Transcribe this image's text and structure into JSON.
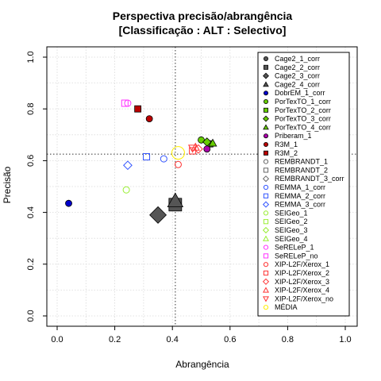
{
  "chart_data": {
    "type": "scatter",
    "title": "Perspectiva precisão/abrangência",
    "subtitle": "[Classificação : ALT : Selectivo]",
    "xlabel": "Abrangência",
    "ylabel": "Precisão",
    "xlim": [
      0,
      1
    ],
    "ylim": [
      0,
      1
    ],
    "xticks": [
      "0.0",
      "0.2",
      "0.4",
      "0.6",
      "0.8",
      "1.0"
    ],
    "yticks": [
      "0.0",
      "0.2",
      "0.4",
      "0.6",
      "0.8",
      "1.0"
    ],
    "grid": true,
    "reference_lines": {
      "x": 0.41,
      "y": 0.625
    },
    "legend_position": "right",
    "series": [
      {
        "name": "Cage2_1_corr",
        "color": "#555555",
        "marker": "circle-filled",
        "x": [],
        "y": []
      },
      {
        "name": "Cage2_2_corr",
        "color": "#555555",
        "marker": "square-filled",
        "x": [
          0.41
        ],
        "y": [
          0.43
        ]
      },
      {
        "name": "Cage2_3_corr",
        "color": "#555555",
        "marker": "diamond-filled",
        "x": [
          0.35
        ],
        "y": [
          0.39
        ]
      },
      {
        "name": "Cage2_4_corr",
        "color": "#555555",
        "marker": "triangle-filled",
        "x": [
          0.41
        ],
        "y": [
          0.445
        ]
      },
      {
        "name": "DobrEM_1_corr",
        "color": "#0000cc",
        "marker": "circle-filled",
        "x": [
          0.04
        ],
        "y": [
          0.435
        ]
      },
      {
        "name": "PorTexTO_1_corr",
        "color": "#66cc00",
        "marker": "circle-filled",
        "x": [
          0.5
        ],
        "y": [
          0.68
        ]
      },
      {
        "name": "PorTexTO_2_corr",
        "color": "#66cc00",
        "marker": "square-filled",
        "x": [
          0.53
        ],
        "y": [
          0.665
        ]
      },
      {
        "name": "PorTexTO_3_corr",
        "color": "#66cc00",
        "marker": "diamond-filled",
        "x": [
          0.52
        ],
        "y": [
          0.672
        ]
      },
      {
        "name": "PorTexTO_4_corr",
        "color": "#66cc00",
        "marker": "triangle-filled",
        "x": [
          0.54
        ],
        "y": [
          0.668
        ]
      },
      {
        "name": "Priberam_1",
        "color": "#aa00aa",
        "marker": "circle-filled",
        "x": [
          0.52
        ],
        "y": [
          0.645
        ]
      },
      {
        "name": "R3M_1",
        "color": "#bb0000",
        "marker": "circle-filled",
        "x": [
          0.32
        ],
        "y": [
          0.762
        ]
      },
      {
        "name": "R3M_2",
        "color": "#bb0000",
        "marker": "square-filled",
        "x": [
          0.28
        ],
        "y": [
          0.8
        ]
      },
      {
        "name": "REMBRANDT_1",
        "color": "#666666",
        "marker": "circle-open",
        "x": [],
        "y": []
      },
      {
        "name": "REMBRANDT_2",
        "color": "#666666",
        "marker": "square-open",
        "x": [],
        "y": []
      },
      {
        "name": "REMBRANDT_3_corr",
        "color": "#666666",
        "marker": "diamond-open",
        "x": [],
        "y": []
      },
      {
        "name": "REMMA_1_corr",
        "color": "#3355ff",
        "marker": "circle-open",
        "x": [
          0.37
        ],
        "y": [
          0.607
        ]
      },
      {
        "name": "REMMA_2_corr",
        "color": "#3355ff",
        "marker": "square-open",
        "x": [
          0.31
        ],
        "y": [
          0.615
        ]
      },
      {
        "name": "REMMA_3_corr",
        "color": "#3355ff",
        "marker": "diamond-open",
        "x": [
          0.245
        ],
        "y": [
          0.582
        ]
      },
      {
        "name": "SEIGeo_1",
        "color": "#99ee33",
        "marker": "circle-open",
        "x": [
          0.24
        ],
        "y": [
          0.487
        ]
      },
      {
        "name": "SEIGeo_2",
        "color": "#99ee33",
        "marker": "square-open",
        "x": [],
        "y": []
      },
      {
        "name": "SEIGeo_3",
        "color": "#99ee33",
        "marker": "diamond-open",
        "x": [],
        "y": []
      },
      {
        "name": "SEIGeo_4",
        "color": "#99ee33",
        "marker": "triangle-open",
        "x": [],
        "y": []
      },
      {
        "name": "SeRELeP_1",
        "color": "#ff33ff",
        "marker": "circle-open",
        "x": [
          0.245
        ],
        "y": [
          0.822
        ]
      },
      {
        "name": "SeRELeP_no",
        "color": "#ff33ff",
        "marker": "square-open",
        "x": [
          0.235
        ],
        "y": [
          0.822
        ]
      },
      {
        "name": "XIP-L2F/Xerox_1",
        "color": "#ff3333",
        "marker": "circle-open",
        "x": [
          0.42
        ],
        "y": [
          0.585
        ]
      },
      {
        "name": "XIP-L2F/Xerox_2",
        "color": "#ff3333",
        "marker": "square-open",
        "x": [
          0.47
        ],
        "y": [
          0.638
        ]
      },
      {
        "name": "XIP-L2F/Xerox_3",
        "color": "#ff3333",
        "marker": "diamond-open",
        "x": [
          0.49
        ],
        "y": [
          0.645
        ]
      },
      {
        "name": "XIP-L2F/Xerox_4",
        "color": "#ff3333",
        "marker": "triangle-open",
        "x": [
          0.48
        ],
        "y": [
          0.652
        ]
      },
      {
        "name": "XIP-L2F/Xerox_no",
        "color": "#ff3333",
        "marker": "triangle-down-open",
        "x": [
          0.47
        ],
        "y": [
          0.648
        ]
      },
      {
        "name": "MÉDIA",
        "color": "#ffee00",
        "marker": "circle-open",
        "x": [
          0.42
        ],
        "y": [
          0.63
        ]
      }
    ]
  }
}
